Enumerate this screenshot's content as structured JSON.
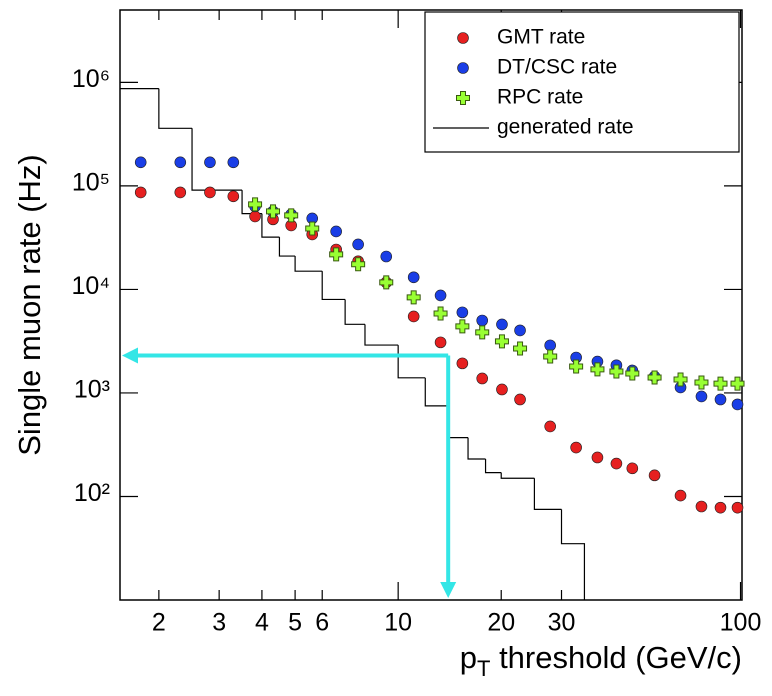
{
  "chart_data": {
    "type": "scatter",
    "y_label": "Single muon rate (Hz)",
    "x_label": {
      "base": "p",
      "sub": "T",
      "rest": " threshold (GeV/c)"
    },
    "log_x": true,
    "log_y": true,
    "xlim": [
      1.54,
      101
    ],
    "ylim": [
      10,
      5000000
    ],
    "xticks": [
      2,
      3,
      4,
      5,
      6,
      10,
      20,
      30,
      100
    ],
    "yticks": [
      {
        "value": 100,
        "label": "10²"
      },
      {
        "value": 1000,
        "label": "10³"
      },
      {
        "value": 10000,
        "label": "10⁴"
      },
      {
        "value": 100000,
        "label": "10⁵"
      },
      {
        "value": 1000000,
        "label": "10⁶"
      }
    ],
    "legend": "top-right",
    "x": [
      1.77,
      2.31,
      2.82,
      3.3,
      3.82,
      4.31,
      4.87,
      5.61,
      6.59,
      7.64,
      9.23,
      11.1,
      13.3,
      15.4,
      17.6,
      20.1,
      22.7,
      27.8,
      33.1,
      38.2,
      43.4,
      48.3,
      56.1,
      66.8,
      76.9,
      87.4,
      98.0
    ],
    "series": [
      {
        "name": "GMT rate",
        "color": "#e62020",
        "marker": "circle",
        "values": [
          86500,
          86500,
          86500,
          79300,
          50700,
          47500,
          41500,
          34000,
          24300,
          18700,
          11700,
          5480,
          3080,
          1930,
          1380,
          1080,
          865,
          475,
          297,
          238,
          208,
          187,
          160,
          102,
          80,
          78,
          78
        ]
      },
      {
        "name": "DT/CSC rate",
        "color": "#1a3ee6",
        "marker": "circle",
        "values": [
          169000,
          169000,
          169000,
          169000,
          63400,
          56700,
          53000,
          48500,
          36300,
          27200,
          20800,
          13100,
          8750,
          6000,
          5010,
          4590,
          4020,
          2880,
          2200,
          2010,
          1850,
          1650,
          1440,
          1130,
          925,
          865,
          775
        ]
      },
      {
        "name": "RPC rate",
        "color": "#99ff33",
        "marker": "cross",
        "values": [
          null,
          null,
          null,
          null,
          66300,
          56700,
          51900,
          38800,
          21800,
          17500,
          11700,
          8370,
          5860,
          4400,
          3850,
          3150,
          2690,
          2250,
          1800,
          1690,
          1610,
          1540,
          1410,
          1350,
          1260,
          1230,
          1230
        ]
      }
    ],
    "histogram": {
      "name": "generated rate",
      "color": "#000000",
      "bins": [
        1.54,
        2,
        2.5,
        3.5,
        4,
        4.5,
        5,
        6,
        7,
        8,
        10,
        12,
        14,
        16,
        18,
        20,
        25,
        30,
        35
      ],
      "values": [
        870000,
        360000,
        91000,
        54000,
        32000,
        21000,
        15000,
        8000,
        4600,
        2900,
        1400,
        750,
        370,
        230,
        170,
        150,
        75,
        35
      ]
    },
    "guide": {
      "x": 14,
      "y": 2300,
      "color": "#33e6e6"
    }
  }
}
